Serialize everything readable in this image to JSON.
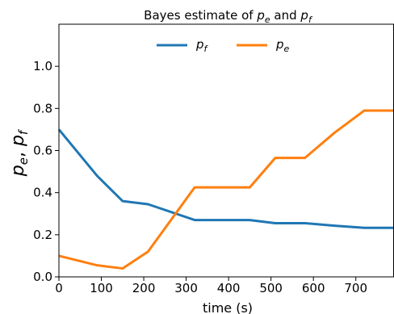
{
  "chart_data": {
    "type": "line",
    "title_main": "Bayes estimate of ",
    "title_var_e": "p",
    "title_sub_e": "e",
    "title_and": " and ",
    "title_var_f": "p",
    "title_sub_f": "f",
    "xlabel": "time (s)",
    "ylabel_var1": "p",
    "ylabel_sub1": "e",
    "ylabel_sep": ", ",
    "ylabel_var2": "p",
    "ylabel_sub2": "f",
    "xlim": [
      0,
      790
    ],
    "ylim": [
      0.0,
      1.2
    ],
    "x_ticks": [
      0,
      100,
      200,
      300,
      400,
      500,
      600,
      700
    ],
    "x_tick_labels": [
      "0",
      "100",
      "200",
      "300",
      "400",
      "500",
      "600",
      "700"
    ],
    "y_ticks": [
      0.0,
      0.2,
      0.4,
      0.6,
      0.8,
      1.0
    ],
    "y_tick_labels": [
      "0.0",
      "0.2",
      "0.4",
      "0.6",
      "0.8",
      "1.0"
    ],
    "grid": false,
    "legend_placement": "top-center",
    "series": [
      {
        "name_var": "p",
        "name_sub": "f",
        "color": "#1f77b4",
        "x": [
          0,
          90,
          150,
          210,
          320,
          450,
          510,
          580,
          650,
          720,
          790
        ],
        "y": [
          0.7,
          0.48,
          0.36,
          0.345,
          0.27,
          0.27,
          0.255,
          0.255,
          0.243,
          0.233,
          0.233
        ]
      },
      {
        "name_var": "p",
        "name_sub": "e",
        "color": "#ff7f0e",
        "x": [
          0,
          90,
          150,
          210,
          320,
          450,
          510,
          580,
          650,
          720,
          790
        ],
        "y": [
          0.1,
          0.055,
          0.04,
          0.12,
          0.425,
          0.425,
          0.565,
          0.565,
          0.685,
          0.79,
          0.79
        ]
      }
    ]
  }
}
